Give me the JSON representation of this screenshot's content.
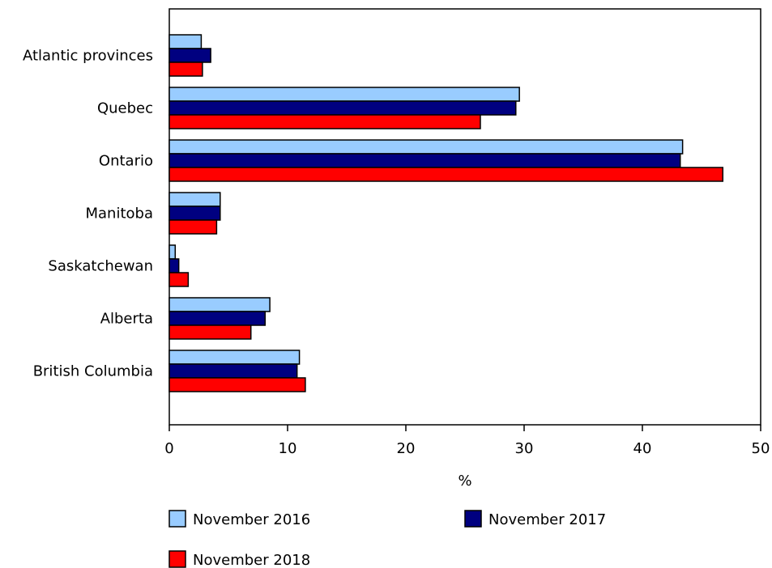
{
  "chart_data": {
    "type": "bar",
    "orientation": "horizontal",
    "categories": [
      "Atlantic provinces",
      "Quebec",
      "Ontario",
      "Manitoba",
      "Saskatchewan",
      "Alberta",
      "British Columbia"
    ],
    "series": [
      {
        "name": "November 2016",
        "color": "#99ccff",
        "values": [
          2.7,
          29.6,
          43.4,
          4.3,
          0.5,
          8.5,
          11.0
        ]
      },
      {
        "name": "November 2017",
        "color": "#000080",
        "values": [
          3.5,
          29.3,
          43.2,
          4.3,
          0.8,
          8.1,
          10.8
        ]
      },
      {
        "name": "November 2018",
        "color": "#ff0000",
        "values": [
          2.8,
          26.3,
          46.8,
          4.0,
          1.6,
          6.9,
          11.5
        ]
      }
    ],
    "xlabel": "%",
    "ylabel": "",
    "xlim": [
      0,
      50
    ],
    "xticks": [
      "0",
      "10",
      "20",
      "30",
      "40",
      "50"
    ],
    "grid": false,
    "legend_position": "bottom"
  }
}
